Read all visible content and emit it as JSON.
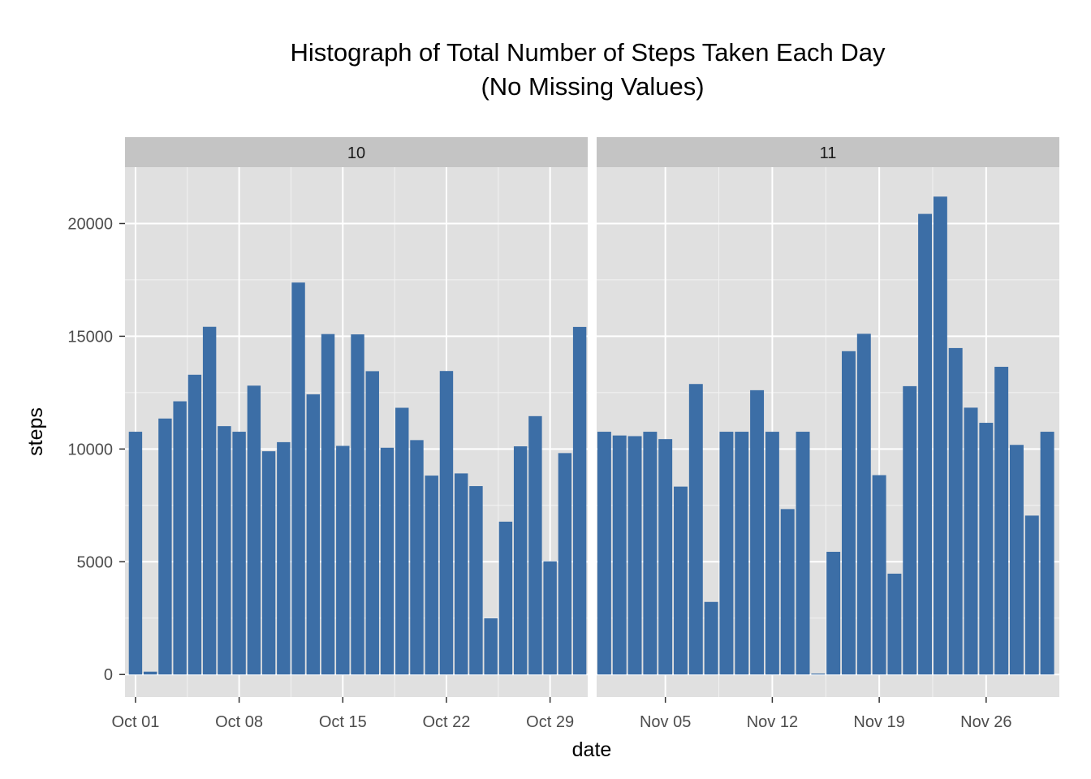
{
  "chart_data": {
    "type": "bar",
    "title": "Histograph of Total Number of Steps Taken Each Day",
    "subtitle": "(No Missing Values)",
    "xlabel": "date",
    "ylabel": "steps",
    "ylim": [
      -1000,
      22500
    ],
    "y_ticks": [
      0,
      5000,
      10000,
      15000,
      20000
    ],
    "y_tick_labels": [
      "0",
      "5000",
      "10000",
      "15000",
      "20000"
    ],
    "grid": true,
    "colors": {
      "bar": "#3c6ea6",
      "panel": "#e0e0e0",
      "strip": "#c4c4c4",
      "grid": "#ffffff"
    },
    "panels": [
      {
        "strip_label": "10",
        "xlim": [
          "2012-09-30 07:00",
          "2012-10-31 13:00"
        ],
        "x_ticks": [
          "2012-10-01",
          "2012-10-08",
          "2012-10-15",
          "2012-10-22",
          "2012-10-29"
        ],
        "x_tick_labels": [
          "Oct 01",
          "Oct 08",
          "Oct 15",
          "Oct 22",
          "Oct 29"
        ],
        "x": [
          "2012-10-01",
          "2012-10-02",
          "2012-10-03",
          "2012-10-04",
          "2012-10-05",
          "2012-10-06",
          "2012-10-07",
          "2012-10-08",
          "2012-10-09",
          "2012-10-10",
          "2012-10-11",
          "2012-10-12",
          "2012-10-13",
          "2012-10-14",
          "2012-10-15",
          "2012-10-16",
          "2012-10-17",
          "2012-10-18",
          "2012-10-19",
          "2012-10-20",
          "2012-10-21",
          "2012-10-22",
          "2012-10-23",
          "2012-10-24",
          "2012-10-25",
          "2012-10-26",
          "2012-10-27",
          "2012-10-28",
          "2012-10-29",
          "2012-10-30",
          "2012-10-31"
        ],
        "values": [
          10766,
          126,
          11352,
          12116,
          13294,
          15420,
          11015,
          10766,
          12811,
          9900,
          10304,
          17382,
          12426,
          15098,
          10139,
          15084,
          13452,
          10056,
          11829,
          10395,
          8821,
          13460,
          8918,
          8355,
          2492,
          6778,
          10119,
          11458,
          5018,
          9819,
          15414
        ]
      },
      {
        "strip_label": "11",
        "xlim": [
          "2012-10-31 12:00",
          "2012-11-30 19:00"
        ],
        "x_ticks": [
          "2012-11-05",
          "2012-11-12",
          "2012-11-19",
          "2012-11-26"
        ],
        "x_tick_labels": [
          "Nov 05",
          "Nov 12",
          "Nov 19",
          "Nov 26"
        ],
        "x": [
          "2012-11-01",
          "2012-11-02",
          "2012-11-03",
          "2012-11-04",
          "2012-11-05",
          "2012-11-06",
          "2012-11-07",
          "2012-11-08",
          "2012-11-09",
          "2012-11-10",
          "2012-11-11",
          "2012-11-12",
          "2012-11-13",
          "2012-11-14",
          "2012-11-15",
          "2012-11-16",
          "2012-11-17",
          "2012-11-18",
          "2012-11-19",
          "2012-11-20",
          "2012-11-21",
          "2012-11-22",
          "2012-11-23",
          "2012-11-24",
          "2012-11-25",
          "2012-11-26",
          "2012-11-27",
          "2012-11-28",
          "2012-11-29",
          "2012-11-30"
        ],
        "values": [
          10766,
          10600,
          10571,
          10766,
          10439,
          8334,
          12883,
          3219,
          10766,
          10766,
          12608,
          10765,
          7336,
          10766,
          41,
          5441,
          14339,
          15110,
          8841,
          4472,
          12787,
          20427,
          21194,
          14478,
          11834,
          11162,
          13646,
          10183,
          7047,
          10766
        ]
      }
    ]
  }
}
